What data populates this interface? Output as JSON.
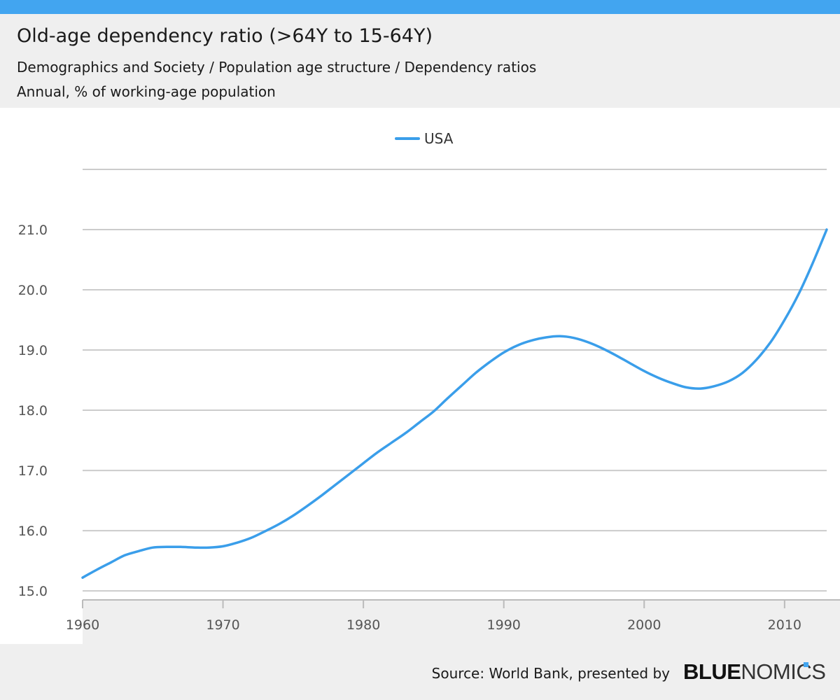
{
  "header": {
    "title": "Old-age dependency ratio (>64Y to 15-64Y)",
    "subtitle": "Demographics and Society / Population age structure / Dependency ratios",
    "units": "Annual, % of working-age population"
  },
  "footer": {
    "source": "Source: World Bank, presented by",
    "logo_part1": "BLUE",
    "logo_part2": "NOMICS"
  },
  "colors": {
    "series": "#3a9eea",
    "grid": "#cccccc",
    "band": "#efefef",
    "axis_text": "#555555"
  },
  "chart_data": {
    "type": "line",
    "title": "Old-age dependency ratio (>64Y to 15-64Y)",
    "xlabel": "",
    "ylabel": "",
    "xlim": [
      1960,
      2013
    ],
    "ylim": [
      14.85,
      22.0
    ],
    "xticks": [
      1960,
      1970,
      1980,
      1990,
      2000,
      2010
    ],
    "xtick_labels": [
      "1960",
      "1970",
      "1980",
      "1990",
      "2000",
      "2010"
    ],
    "yticks": [
      15.0,
      16.0,
      17.0,
      18.0,
      19.0,
      20.0,
      21.0,
      22.0
    ],
    "ytick_labels": [
      "15.0",
      "16.0",
      "17.0",
      "18.0",
      "19.0",
      "20.0",
      "21.0",
      ""
    ],
    "legend": {
      "position": "top-center",
      "entries": [
        "USA"
      ]
    },
    "series": [
      {
        "name": "USA",
        "x": [
          1960,
          1961,
          1962,
          1963,
          1964,
          1965,
          1966,
          1967,
          1968,
          1969,
          1970,
          1971,
          1972,
          1973,
          1974,
          1975,
          1976,
          1977,
          1978,
          1979,
          1980,
          1981,
          1982,
          1983,
          1984,
          1985,
          1986,
          1987,
          1988,
          1989,
          1990,
          1991,
          1992,
          1993,
          1994,
          1995,
          1996,
          1997,
          1998,
          1999,
          2000,
          2001,
          2002,
          2003,
          2004,
          2005,
          2006,
          2007,
          2008,
          2009,
          2010,
          2011,
          2012,
          2013
        ],
        "values": [
          15.22,
          15.35,
          15.47,
          15.59,
          15.66,
          15.72,
          15.73,
          15.73,
          15.72,
          15.72,
          15.74,
          15.8,
          15.88,
          15.99,
          16.11,
          16.25,
          16.41,
          16.58,
          16.76,
          16.94,
          17.12,
          17.3,
          17.46,
          17.62,
          17.8,
          17.98,
          18.2,
          18.41,
          18.62,
          18.8,
          18.96,
          19.08,
          19.16,
          19.21,
          19.23,
          19.2,
          19.13,
          19.03,
          18.91,
          18.78,
          18.65,
          18.54,
          18.45,
          18.38,
          18.36,
          18.4,
          18.48,
          18.62,
          18.84,
          19.13,
          19.5,
          19.93,
          20.44,
          21.0
        ]
      }
    ]
  }
}
